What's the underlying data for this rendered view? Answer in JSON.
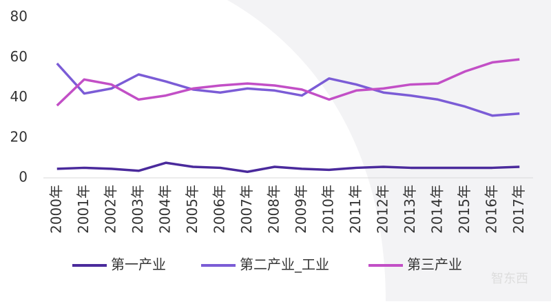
{
  "chart_data": {
    "type": "line",
    "categories": [
      "2000年",
      "2001年",
      "2002年",
      "2003年",
      "2004年",
      "2005年",
      "2006年",
      "2007年",
      "2008年",
      "2009年",
      "2010年",
      "2011年",
      "2012年",
      "2013年",
      "2014年",
      "2015年",
      "2016年",
      "2017年"
    ],
    "series": [
      {
        "name": "第一产业",
        "color": "#4a2a9c",
        "values": [
          4.5,
          5,
          4.5,
          3.5,
          7.5,
          5.5,
          5,
          3,
          5.5,
          4.5,
          4,
          5,
          5.5,
          5,
          5,
          5,
          5,
          5.5
        ]
      },
      {
        "name": "第二产业_工业",
        "color": "#7b5cd6",
        "values": [
          57,
          42,
          44.5,
          51.5,
          48,
          44,
          42.5,
          44.5,
          43.5,
          41,
          49.5,
          46.5,
          42.5,
          41,
          39,
          35.5,
          31,
          32
        ]
      },
      {
        "name": "第三产业",
        "color": "#c24fc6",
        "values": [
          36,
          49,
          46.5,
          39,
          41,
          44.5,
          46,
          47,
          46,
          44,
          39,
          43.5,
          44.5,
          46.5,
          47,
          53,
          57.5,
          59
        ]
      }
    ],
    "ylim": [
      0,
      80
    ],
    "yticks": [
      0,
      20,
      40,
      60,
      80
    ],
    "legend": "bottom",
    "watermark": "智东西"
  }
}
